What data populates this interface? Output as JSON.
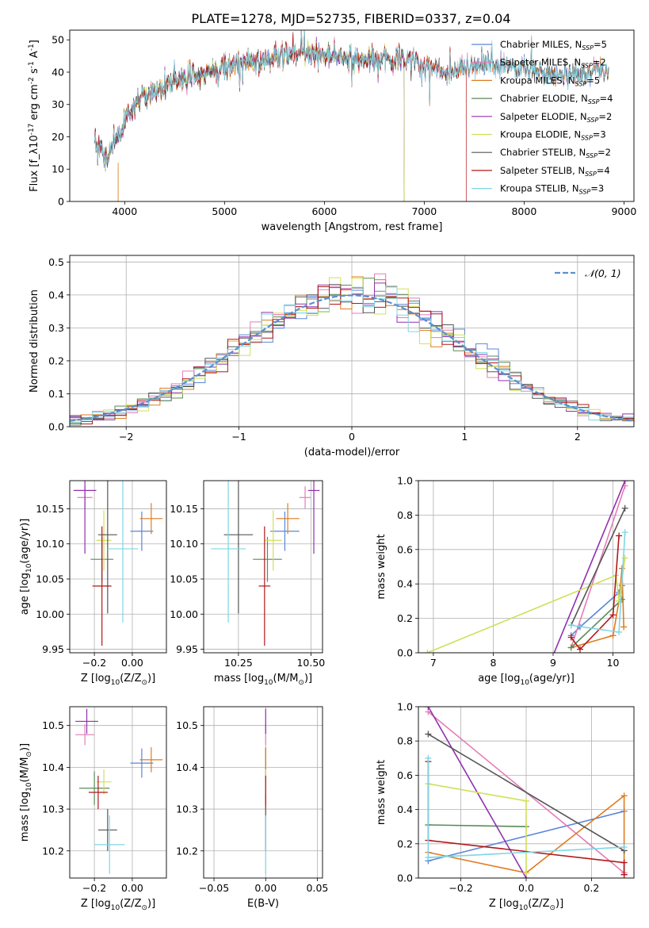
{
  "figure": {
    "title": "PLATE=1278, MJD=52735, FIBERID=0337, z=0.04"
  },
  "colors": {
    "Chabrier MILES": "#5b86d6",
    "Salpeter MILES": "#e47db7",
    "Kroupa MILES": "#e07b20",
    "Chabrier ELODIE": "#5a8a5a",
    "Salpeter ELODIE": "#9030b0",
    "Kroupa ELODIE": "#cfe05a",
    "Chabrier STELIB": "#555555",
    "Salpeter STELIB": "#b01818",
    "Kroupa STELIB": "#7fd6e6"
  },
  "legend_order": [
    "Chabrier MILES",
    "Salpeter MILES",
    "Kroupa MILES",
    "Chabrier ELODIE",
    "Salpeter ELODIE",
    "Kroupa ELODIE",
    "Chabrier STELIB",
    "Salpeter STELIB",
    "Kroupa STELIB"
  ],
  "chart_data": [
    {
      "id": "spectrum",
      "type": "line",
      "title": "PLATE=1278, MJD=52735, FIBERID=0337, z=0.04",
      "xlabel": "wavelength [Angstrom, rest frame]",
      "ylabel": "Flux [f_λ10^-17 erg cm^-2 s^-1 A^-1]",
      "xlim": [
        3450,
        9100
      ],
      "ylim": [
        0,
        53
      ],
      "xticks": [
        4000,
        5000,
        6000,
        7000,
        8000,
        9000
      ],
      "yticks": [
        0,
        10,
        20,
        30,
        40,
        50
      ],
      "legend_loc": "upper right",
      "series": [
        {
          "name": "Chabrier MILES, N_SSP=5",
          "nssp": "5",
          "start": 3700,
          "end": 8850
        },
        {
          "name": "Salpeter MILES, N_SSP=2",
          "nssp": "2",
          "start": 3700,
          "end": 8850
        },
        {
          "name": "Kroupa MILES, N_SSP=5",
          "nssp": "5",
          "start": 3700,
          "end": 8850
        },
        {
          "name": "Chabrier ELODIE, N_SSP=4",
          "nssp": "4",
          "start": 3700,
          "end": 6800
        },
        {
          "name": "Salpeter ELODIE, N_SSP=2",
          "nssp": "2",
          "start": 3700,
          "end": 6800
        },
        {
          "name": "Kroupa ELODIE, N_SSP=3",
          "nssp": "3",
          "start": 3700,
          "end": 6800
        },
        {
          "name": "Chabrier STELIB, N_SSP=2",
          "nssp": "2",
          "start": 3700,
          "end": 8850
        },
        {
          "name": "Salpeter STELIB, N_SSP=4",
          "nssp": "4",
          "start": 3700,
          "end": 7420
        },
        {
          "name": "Kroupa STELIB, N_SSP=3",
          "nssp": "3",
          "start": 3700,
          "end": 8850
        }
      ],
      "continuum": [
        [
          3700,
          18
        ],
        [
          3800,
          14
        ],
        [
          3950,
          20
        ],
        [
          4050,
          28
        ],
        [
          4200,
          33
        ],
        [
          4400,
          36
        ],
        [
          4600,
          38
        ],
        [
          4800,
          40
        ],
        [
          5000,
          42
        ],
        [
          5200,
          43
        ],
        [
          5400,
          44
        ],
        [
          5600,
          45
        ],
        [
          5800,
          46
        ],
        [
          6000,
          45.5
        ],
        [
          6200,
          44.5
        ],
        [
          6500,
          44
        ],
        [
          6800,
          44
        ],
        [
          7000,
          43
        ],
        [
          7200,
          40
        ],
        [
          7400,
          41
        ],
        [
          7600,
          43
        ],
        [
          7800,
          42
        ],
        [
          8000,
          41
        ],
        [
          8200,
          40
        ],
        [
          8500,
          39.5
        ],
        [
          8850,
          40
        ]
      ]
    },
    {
      "id": "residuals",
      "type": "line",
      "xlabel": "(data-model)/error",
      "ylabel": "Normed distribution",
      "xlim": [
        -2.5,
        2.5
      ],
      "ylim": [
        0,
        0.52
      ],
      "xticks": [
        -2,
        -1,
        0,
        1,
        2
      ],
      "yticks": [
        0.0,
        0.1,
        0.2,
        0.3,
        0.4,
        0.5
      ],
      "reference": {
        "label": "N(0,1)",
        "mu": 0,
        "sigma": 1
      },
      "bin_width": 0.1
    },
    {
      "id": "age-vs-Z",
      "type": "scatter",
      "xlabel": "Z [log10(Z/Z⊙)]",
      "ylabel": "age [log10(age/yr)]",
      "xlim": [
        -0.33,
        0.18
      ],
      "ylim": [
        9.945,
        10.19
      ],
      "xticks": [
        -0.2,
        0.0
      ],
      "yticks": [
        9.95,
        10.0,
        10.05,
        10.1,
        10.15
      ],
      "points": [
        {
          "s": "Chabrier MILES",
          "x": 0.05,
          "xerr": 0.06,
          "y": 10.118,
          "yerr": 0.028
        },
        {
          "s": "Salpeter MILES",
          "x": -0.25,
          "xerr": 0.04,
          "y": 10.166,
          "yerr": 0.016
        },
        {
          "s": "Kroupa MILES",
          "x": 0.1,
          "xerr": 0.06,
          "y": 10.136,
          "yerr": 0.022
        },
        {
          "s": "Chabrier ELODIE",
          "x": -0.16,
          "xerr": 0.06,
          "y": 10.078,
          "yerr": 0.032
        },
        {
          "s": "Salpeter ELODIE",
          "x": -0.25,
          "xerr": 0.06,
          "y": 10.176,
          "yerr": 0.09
        },
        {
          "s": "Kroupa ELODIE",
          "x": -0.15,
          "xerr": 0.04,
          "y": 10.105,
          "yerr": 0.043
        },
        {
          "s": "Chabrier STELIB",
          "x": -0.13,
          "xerr": 0.05,
          "y": 10.113,
          "yerr": 0.112
        },
        {
          "s": "Salpeter STELIB",
          "x": -0.16,
          "xerr": 0.05,
          "y": 10.04,
          "yerr": 0.085
        },
        {
          "s": "Kroupa STELIB",
          "x": -0.05,
          "xerr": 0.08,
          "y": 10.093,
          "yerr": 0.105
        }
      ]
    },
    {
      "id": "age-vs-mass",
      "type": "scatter",
      "xlabel": "mass [log10(M/M⊙)]",
      "ylabel": "",
      "xlim": [
        10.13,
        10.54
      ],
      "ylim": [
        9.945,
        10.19
      ],
      "xticks": [
        10.25,
        10.5
      ],
      "yticks": [
        9.95,
        10.0,
        10.05,
        10.1,
        10.15
      ],
      "points": [
        {
          "s": "Chabrier MILES",
          "x": 10.41,
          "xerr": 0.05,
          "y": 10.118,
          "yerr": 0.028
        },
        {
          "s": "Salpeter MILES",
          "x": 10.48,
          "xerr": 0.02,
          "y": 10.166,
          "yerr": 0.016
        },
        {
          "s": "Kroupa MILES",
          "x": 10.42,
          "xerr": 0.04,
          "y": 10.136,
          "yerr": 0.022
        },
        {
          "s": "Chabrier ELODIE",
          "x": 10.35,
          "xerr": 0.05,
          "y": 10.078,
          "yerr": 0.032
        },
        {
          "s": "Salpeter ELODIE",
          "x": 10.51,
          "xerr": 0.02,
          "y": 10.176,
          "yerr": 0.09
        },
        {
          "s": "Kroupa ELODIE",
          "x": 10.37,
          "xerr": 0.03,
          "y": 10.105,
          "yerr": 0.043
        },
        {
          "s": "Chabrier STELIB",
          "x": 10.25,
          "xerr": 0.05,
          "y": 10.113,
          "yerr": 0.112
        },
        {
          "s": "Salpeter STELIB",
          "x": 10.34,
          "xerr": 0.02,
          "y": 10.04,
          "yerr": 0.085
        },
        {
          "s": "Kroupa STELIB",
          "x": 10.215,
          "xerr": 0.06,
          "y": 10.093,
          "yerr": 0.105
        }
      ]
    },
    {
      "id": "mass-weight-vs-age",
      "type": "line",
      "xlabel": "age [log10(age/yr)]",
      "ylabel": "mass weight",
      "xlim": [
        6.75,
        10.35
      ],
      "ylim": [
        0,
        1
      ],
      "xticks": [
        7,
        8,
        9,
        10
      ],
      "yticks": [
        0.0,
        0.2,
        0.4,
        0.6,
        0.8,
        1.0
      ],
      "series": [
        {
          "s": "Chabrier MILES",
          "x": [
            9.3,
            9.45,
            10.1,
            10.15
          ],
          "y": [
            0.1,
            0.15,
            0.35,
            0.39
          ]
        },
        {
          "s": "Salpeter MILES",
          "x": [
            9.3,
            10.2
          ],
          "y": [
            0.03,
            0.97
          ]
        },
        {
          "s": "Kroupa MILES",
          "x": [
            9.3,
            10.0,
            10.1,
            10.15,
            10.18
          ],
          "y": [
            0.03,
            0.1,
            0.3,
            0.49,
            0.15
          ]
        },
        {
          "s": "Chabrier ELODIE",
          "x": [
            9.3,
            10.15
          ],
          "y": [
            0.03,
            0.31
          ]
        },
        {
          "s": "Salpeter ELODIE",
          "x": [
            8.9,
            10.2
          ],
          "y": [
            -0.1,
            1.0
          ]
        },
        {
          "s": "Kroupa ELODIE",
          "x": [
            6.9,
            10.05,
            10.1,
            10.2
          ],
          "y": [
            0.0,
            0.45,
            0.3,
            0.55
          ]
        },
        {
          "s": "Chabrier STELIB",
          "x": [
            9.3,
            10.2
          ],
          "y": [
            0.16,
            0.84
          ]
        },
        {
          "s": "Salpeter STELIB",
          "x": [
            9.3,
            9.45,
            10.0,
            10.1
          ],
          "y": [
            0.09,
            0.02,
            0.22,
            0.68
          ]
        },
        {
          "s": "Kroupa STELIB",
          "x": [
            9.3,
            10.1,
            10.2
          ],
          "y": [
            0.16,
            0.12,
            0.7
          ]
        }
      ]
    },
    {
      "id": "mass-vs-Z",
      "type": "scatter",
      "xlabel": "Z [log10(Z/Z⊙)]",
      "ylabel": "mass [log10(M/M⊙)]",
      "xlim": [
        -0.33,
        0.18
      ],
      "ylim": [
        10.135,
        10.545
      ],
      "xticks": [
        -0.2,
        0.0
      ],
      "yticks": [
        10.2,
        10.3,
        10.4,
        10.5
      ],
      "points": [
        {
          "s": "Chabrier MILES",
          "x": 0.05,
          "xerr": 0.06,
          "y": 10.41,
          "yerr": 0.035
        },
        {
          "s": "Salpeter MILES",
          "x": -0.25,
          "xerr": 0.05,
          "y": 10.478,
          "yerr": 0.025
        },
        {
          "s": "Kroupa MILES",
          "x": 0.1,
          "xerr": 0.06,
          "y": 10.418,
          "yerr": 0.03
        },
        {
          "s": "Chabrier ELODIE",
          "x": -0.2,
          "xerr": 0.08,
          "y": 10.35,
          "yerr": 0.04
        },
        {
          "s": "Salpeter ELODIE",
          "x": -0.24,
          "xerr": 0.06,
          "y": 10.51,
          "yerr": 0.03
        },
        {
          "s": "Kroupa ELODIE",
          "x": -0.15,
          "xerr": 0.04,
          "y": 10.365,
          "yerr": 0.03
        },
        {
          "s": "Chabrier STELIB",
          "x": -0.13,
          "xerr": 0.05,
          "y": 10.25,
          "yerr": 0.05
        },
        {
          "s": "Salpeter STELIB",
          "x": -0.18,
          "xerr": 0.05,
          "y": 10.34,
          "yerr": 0.04
        },
        {
          "s": "Kroupa STELIB",
          "x": -0.12,
          "xerr": 0.08,
          "y": 10.215,
          "yerr": 0.07
        }
      ]
    },
    {
      "id": "mass-vs-EBV",
      "type": "scatter",
      "xlabel": "E(B-V)",
      "ylabel": "",
      "xlim": [
        -0.06,
        0.055
      ],
      "ylim": [
        10.135,
        10.545
      ],
      "xticks": [
        -0.05,
        0.0,
        0.05
      ],
      "yticks": [
        10.2,
        10.3,
        10.4,
        10.5
      ],
      "points": [
        {
          "s": "Chabrier MILES",
          "x": 0,
          "xerr": 0,
          "y": 10.41,
          "yerr": 0.035
        },
        {
          "s": "Salpeter MILES",
          "x": 0,
          "xerr": 0,
          "y": 10.478,
          "yerr": 0.025
        },
        {
          "s": "Kroupa MILES",
          "x": 0,
          "xerr": 0,
          "y": 10.418,
          "yerr": 0.03
        },
        {
          "s": "Chabrier ELODIE",
          "x": 0,
          "xerr": 0,
          "y": 10.35,
          "yerr": 0.04
        },
        {
          "s": "Salpeter ELODIE",
          "x": 0,
          "xerr": 0,
          "y": 10.51,
          "yerr": 0.03
        },
        {
          "s": "Kroupa ELODIE",
          "x": 0,
          "xerr": 0,
          "y": 10.365,
          "yerr": 0.03
        },
        {
          "s": "Chabrier STELIB",
          "x": 0,
          "xerr": 0,
          "y": 10.25,
          "yerr": 0.05
        },
        {
          "s": "Salpeter STELIB",
          "x": 0,
          "xerr": 0,
          "y": 10.34,
          "yerr": 0.04
        },
        {
          "s": "Kroupa STELIB",
          "x": 0,
          "xerr": 0,
          "y": 10.215,
          "yerr": 0.07
        }
      ]
    },
    {
      "id": "mass-weight-vs-Z",
      "type": "line",
      "xlabel": "Z [log10(Z/Z⊙)]",
      "ylabel": "mass weight",
      "xlim": [
        -0.33,
        0.33
      ],
      "ylim": [
        0,
        1
      ],
      "xticks": [
        -0.2,
        0.0,
        0.2
      ],
      "yticks": [
        0.0,
        0.2,
        0.4,
        0.6,
        0.8,
        1.0
      ],
      "series": [
        {
          "s": "Chabrier MILES",
          "x": [
            -0.3,
            0.3
          ],
          "y": [
            0.1,
            0.39
          ]
        },
        {
          "s": "Salpeter MILES",
          "x": [
            -0.3,
            0.3
          ],
          "y": [
            0.97,
            0.03
          ]
        },
        {
          "s": "Kroupa MILES",
          "x": [
            -0.3,
            0.0,
            0.3,
            0.3
          ],
          "y": [
            0.15,
            0.03,
            0.48,
            0.02
          ]
        },
        {
          "s": "Chabrier ELODIE",
          "x": [
            -0.3,
            0.0
          ],
          "y": [
            0.31,
            0.3
          ]
        },
        {
          "s": "Salpeter ELODIE",
          "x": [
            -0.3,
            0.0
          ],
          "y": [
            1.0,
            0.0
          ]
        },
        {
          "s": "Kroupa ELODIE",
          "x": [
            -0.3,
            0.0,
            0.0
          ],
          "y": [
            0.55,
            0.45,
            0.03
          ]
        },
        {
          "s": "Chabrier STELIB",
          "x": [
            -0.3,
            0.3
          ],
          "y": [
            0.84,
            0.16
          ]
        },
        {
          "s": "Salpeter STELIB",
          "x": [
            -0.3,
            -0.3,
            0.3,
            0.3
          ],
          "y": [
            0.68,
            0.22,
            0.09,
            0.02
          ]
        },
        {
          "s": "Kroupa STELIB",
          "x": [
            -0.3,
            -0.3,
            0.3
          ],
          "y": [
            0.7,
            0.12,
            0.18
          ]
        }
      ]
    }
  ]
}
